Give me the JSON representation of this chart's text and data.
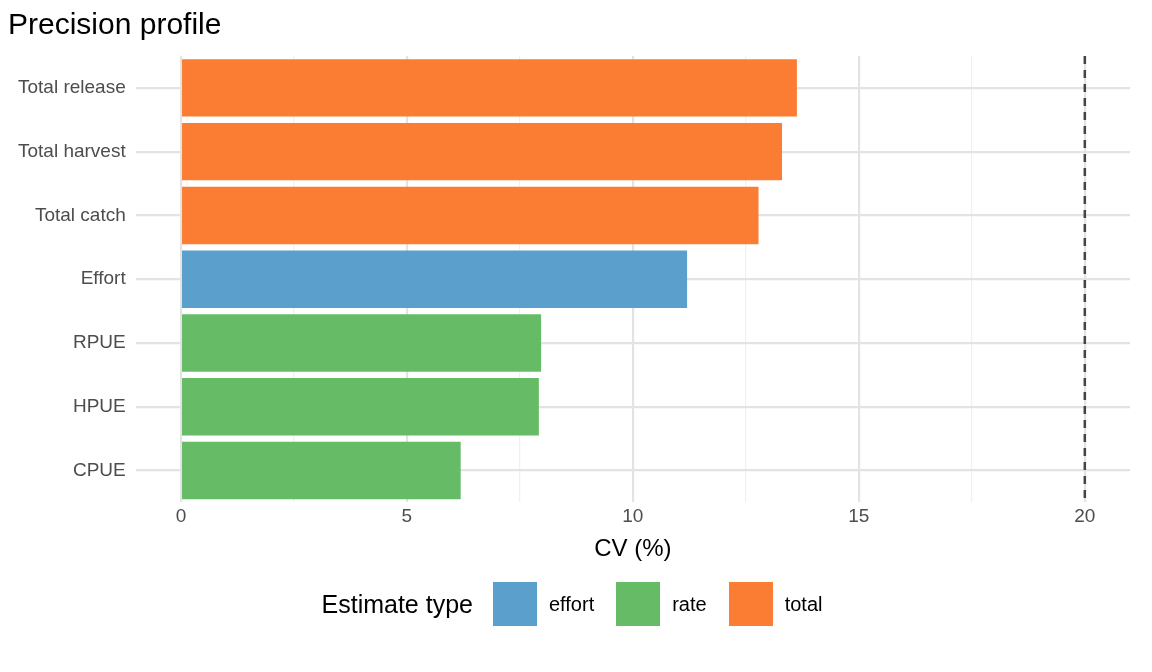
{
  "chart_data": {
    "type": "bar",
    "orientation": "horizontal",
    "title": "Precision profile",
    "xlabel": "CV (%)",
    "legend_title": "Estimate type",
    "categories": [
      "Total release",
      "Total harvest",
      "Total catch",
      "Effort",
      "RPUE",
      "HPUE",
      "CPUE"
    ],
    "series": [
      {
        "name": "effort",
        "color": "#5b9fcc",
        "values": [
          null,
          null,
          null,
          11.2,
          null,
          null,
          null
        ]
      },
      {
        "name": "rate",
        "color": "#66bb66",
        "values": [
          null,
          null,
          null,
          null,
          7.97,
          7.92,
          6.19
        ]
      },
      {
        "name": "total",
        "color": "#fb7d34",
        "values": [
          13.63,
          13.3,
          12.78,
          null,
          null,
          null,
          null
        ]
      }
    ],
    "xlim": [
      -1,
      21
    ],
    "xticks": [
      0,
      {
        "value": 2.5,
        "label": null
      },
      5,
      {
        "value": 7.5,
        "label": null
      },
      10,
      {
        "value": 12.5,
        "label": null
      },
      15,
      {
        "value": 17.5,
        "label": null
      },
      20
    ],
    "ref_lines": [
      {
        "axis": "x",
        "value": 20,
        "color": "#444444",
        "line_style": "dashed"
      }
    ],
    "grid": true,
    "legend": "bottom"
  }
}
